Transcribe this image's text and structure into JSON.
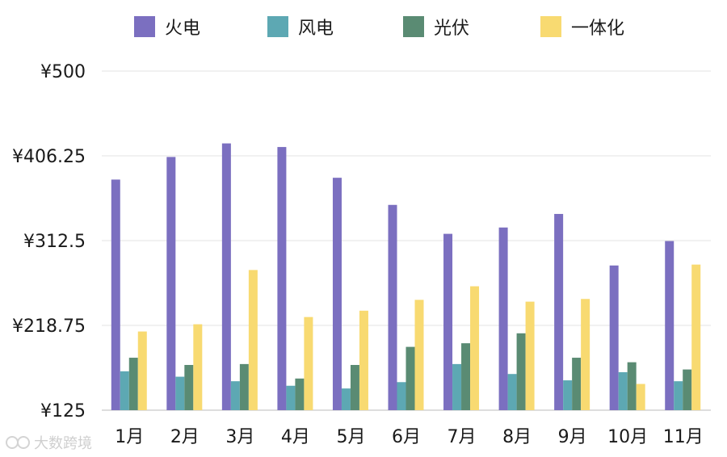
{
  "chart_data": {
    "type": "bar",
    "title": "",
    "xlabel": "",
    "ylabel": "",
    "categories": [
      "1月",
      "2月",
      "3月",
      "4月",
      "5月",
      "6月",
      "7月",
      "8月",
      "9月",
      "10月",
      "11月"
    ],
    "series": [
      {
        "name": "火电",
        "color": "#7B6FC0",
        "values": [
          380,
          405,
          420,
          416,
          382,
          352,
          320,
          327,
          342,
          285,
          312
        ]
      },
      {
        "name": "风电",
        "color": "#5DA8B3",
        "values": [
          168,
          162,
          157,
          152,
          149,
          156,
          176,
          165,
          158,
          167,
          157
        ]
      },
      {
        "name": "光伏",
        "color": "#5A8B73",
        "values": [
          183,
          175,
          176,
          160,
          175,
          195,
          199,
          210,
          183,
          178,
          170
        ]
      },
      {
        "name": "一体化",
        "color": "#F8DA71",
        "values": [
          212,
          220,
          280,
          228,
          235,
          247,
          262,
          245,
          248,
          154,
          286
        ]
      }
    ],
    "y_ticks": [
      "¥125",
      "¥218.75",
      "¥312.5",
      "¥406.25",
      "¥500"
    ],
    "ylim": [
      125,
      500
    ],
    "grid": true,
    "legend_position": "top"
  },
  "watermark": {
    "text": "大数跨境"
  }
}
